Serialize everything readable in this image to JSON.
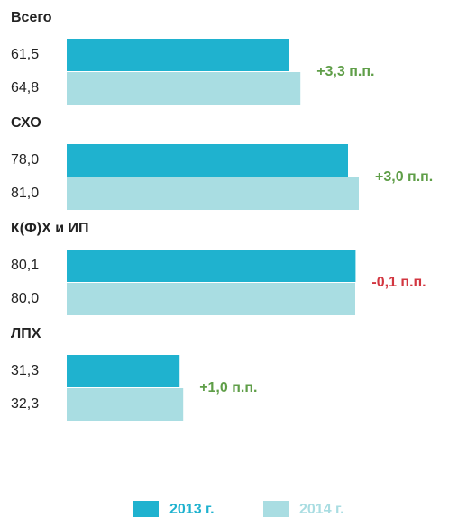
{
  "chart_data": {
    "type": "bar",
    "orientation": "horizontal",
    "categories": [
      "Всего",
      "СХО",
      "К(Ф)Х и ИП",
      "ЛПХ"
    ],
    "series": [
      {
        "name": "2013 г.",
        "color": "#1fb2cf",
        "values": [
          61.5,
          78.0,
          80.1,
          31.3
        ],
        "value_labels": [
          "61,5",
          "78,0",
          "80,1",
          "31,3"
        ]
      },
      {
        "name": "2014 г.",
        "color": "#a9dde2",
        "values": [
          64.8,
          81.0,
          80.0,
          32.3
        ],
        "value_labels": [
          "64,8",
          "81,0",
          "80,0",
          "32,3"
        ]
      }
    ],
    "annotations": [
      {
        "text": "+3,3 п.п.",
        "color": "#5f9e48"
      },
      {
        "text": "+3,0 п.п.",
        "color": "#5f9e48"
      },
      {
        "text": "-0,1 п.п.",
        "color": "#d23640"
      },
      {
        "text": "+1,0 п.п.",
        "color": "#5f9e48"
      }
    ],
    "legend": "bottom"
  }
}
